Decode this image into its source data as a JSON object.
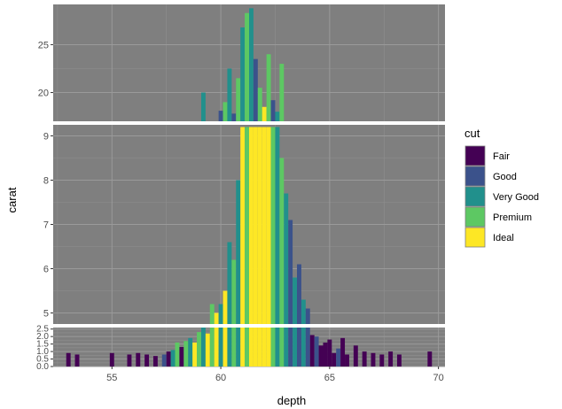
{
  "chart_data": {
    "type": "bar",
    "subtype": "stacked histogram with broken (segmented) y-axis",
    "xlabel": "depth",
    "ylabel": "carat",
    "xlim": [
      52.3,
      70.3
    ],
    "x_ticks": [
      55,
      60,
      65,
      70
    ],
    "x_tick_labels": [
      "55",
      "60",
      "65",
      "70"
    ],
    "panel_background": "#7f7f7f",
    "grid": true,
    "panels": [
      {
        "name": "upper",
        "ylim": [
          17.0,
          29.2
        ],
        "y_ticks": [
          20,
          25
        ],
        "y_tick_labels": [
          "20",
          "25"
        ]
      },
      {
        "name": "middle",
        "ylim": [
          4.75,
          9.25
        ],
        "y_ticks": [
          5,
          6,
          7,
          8,
          9
        ],
        "y_tick_labels": [
          "5",
          "6",
          "7",
          "8",
          "9"
        ]
      },
      {
        "name": "lower",
        "ylim": [
          0,
          2.6
        ],
        "y_ticks": [
          0.0,
          0.5,
          1.0,
          1.5,
          2.0,
          2.5
        ],
        "y_tick_labels": [
          "0.0",
          "0.5",
          "1.0",
          "1.5",
          "2.0",
          "2.5"
        ]
      }
    ],
    "legend": {
      "title": "cut",
      "position": "right",
      "entries": [
        {
          "name": "Fair",
          "color": "#440154"
        },
        {
          "name": "Good",
          "color": "#3b528b"
        },
        {
          "name": "Very Good",
          "color": "#21908c"
        },
        {
          "name": "Premium",
          "color": "#5dc863"
        },
        {
          "name": "Ideal",
          "color": "#fde725"
        }
      ]
    },
    "bin_width": 0.2,
    "bins": [
      {
        "x": 53.0,
        "cut": "Fair",
        "height": 0.9
      },
      {
        "x": 53.4,
        "cut": "Fair",
        "height": 0.8
      },
      {
        "x": 55.0,
        "cut": "Fair",
        "height": 0.9
      },
      {
        "x": 55.8,
        "cut": "Fair",
        "height": 0.8
      },
      {
        "x": 56.2,
        "cut": "Fair",
        "height": 0.9
      },
      {
        "x": 56.6,
        "cut": "Fair",
        "height": 0.8
      },
      {
        "x": 57.0,
        "cut": "Fair",
        "height": 0.7
      },
      {
        "x": 57.4,
        "cut": "Good",
        "height": 0.8
      },
      {
        "x": 57.6,
        "cut": "Fair",
        "height": 1.0
      },
      {
        "x": 57.8,
        "cut": "Very Good",
        "height": 1.1
      },
      {
        "x": 58.0,
        "cut": "Premium",
        "height": 1.6
      },
      {
        "x": 58.2,
        "cut": "Fair",
        "height": 1.3
      },
      {
        "x": 58.4,
        "cut": "Premium",
        "height": 1.7
      },
      {
        "x": 58.6,
        "cut": "Very Good",
        "height": 1.9
      },
      {
        "x": 58.8,
        "cut": "Ideal",
        "height": 1.6
      },
      {
        "x": 59.0,
        "cut": "Premium",
        "height": 2.3
      },
      {
        "x": 59.2,
        "cut": "Very Good",
        "height": 2.6
      },
      {
        "x": 59.4,
        "cut": "Ideal",
        "height": 2.2
      },
      {
        "x": 59.6,
        "cut": "Premium",
        "height": 5.2
      },
      {
        "x": 59.8,
        "cut": "Ideal",
        "height": 5.0
      },
      {
        "x": 60.0,
        "cut": "Very Good",
        "height": 5.2
      },
      {
        "x": 60.2,
        "cut": "Ideal",
        "height": 5.5
      },
      {
        "x": 60.4,
        "cut": "Very Good",
        "height": 6.6
      },
      {
        "x": 60.6,
        "cut": "Premium",
        "height": 6.2
      },
      {
        "x": 60.8,
        "cut": "Very Good",
        "height": 8.0
      },
      {
        "x": 61.0,
        "cut": "Ideal",
        "height": 9.2
      },
      {
        "x": 61.2,
        "cut": "Premium",
        "height": 9.2
      },
      {
        "x": 61.4,
        "cut": "Ideal",
        "height": 9.2
      },
      {
        "x": 61.6,
        "cut": "Ideal",
        "height": 9.2
      },
      {
        "x": 61.8,
        "cut": "Ideal",
        "height": 9.2
      },
      {
        "x": 62.0,
        "cut": "Ideal",
        "height": 9.2
      },
      {
        "x": 62.2,
        "cut": "Ideal",
        "height": 9.2
      },
      {
        "x": 62.4,
        "cut": "Premium",
        "height": 9.2
      },
      {
        "x": 62.6,
        "cut": "Very Good",
        "height": 9.2
      },
      {
        "x": 62.8,
        "cut": "Premium",
        "height": 8.5
      },
      {
        "x": 63.0,
        "cut": "Very Good",
        "height": 7.7
      },
      {
        "x": 63.2,
        "cut": "Good",
        "height": 7.1
      },
      {
        "x": 63.4,
        "cut": "Very Good",
        "height": 5.8
      },
      {
        "x": 63.6,
        "cut": "Good",
        "height": 6.1
      },
      {
        "x": 63.8,
        "cut": "Very Good",
        "height": 5.3
      },
      {
        "x": 64.0,
        "cut": "Good",
        "height": 5.1
      },
      {
        "x": 64.2,
        "cut": "Fair",
        "height": 2.1
      },
      {
        "x": 64.4,
        "cut": "Good",
        "height": 2.0
      },
      {
        "x": 64.6,
        "cut": "Fair",
        "height": 1.4
      },
      {
        "x": 64.8,
        "cut": "Fair",
        "height": 1.6
      },
      {
        "x": 65.0,
        "cut": "Fair",
        "height": 1.8
      },
      {
        "x": 65.2,
        "cut": "Fair",
        "height": 0.9
      },
      {
        "x": 65.4,
        "cut": "Good",
        "height": 1.2
      },
      {
        "x": 65.6,
        "cut": "Fair",
        "height": 1.9
      },
      {
        "x": 65.8,
        "cut": "Fair",
        "height": 0.8
      },
      {
        "x": 66.2,
        "cut": "Fair",
        "height": 1.4
      },
      {
        "x": 66.6,
        "cut": "Fair",
        "height": 1.0
      },
      {
        "x": 67.0,
        "cut": "Fair",
        "height": 0.9
      },
      {
        "x": 67.4,
        "cut": "Fair",
        "height": 0.8
      },
      {
        "x": 67.8,
        "cut": "Fair",
        "height": 1.0
      },
      {
        "x": 68.2,
        "cut": "Fair",
        "height": 0.8
      },
      {
        "x": 69.6,
        "cut": "Fair",
        "height": 1.0
      }
    ],
    "peak_spikes": [
      {
        "x": 59.2,
        "cut": "Very Good",
        "height": 20.0
      },
      {
        "x": 60.0,
        "cut": "Good",
        "height": 18.1
      },
      {
        "x": 60.2,
        "cut": "Premium",
        "height": 19.0
      },
      {
        "x": 60.4,
        "cut": "Very Good",
        "height": 22.5
      },
      {
        "x": 60.6,
        "cut": "Good",
        "height": 17.8
      },
      {
        "x": 60.8,
        "cut": "Premium",
        "height": 21.5
      },
      {
        "x": 61.0,
        "cut": "Very Good",
        "height": 26.8
      },
      {
        "x": 61.2,
        "cut": "Premium",
        "height": 28.3
      },
      {
        "x": 61.4,
        "cut": "Very Good",
        "height": 28.8
      },
      {
        "x": 61.6,
        "cut": "Good",
        "height": 23.5
      },
      {
        "x": 61.8,
        "cut": "Premium",
        "height": 20.5
      },
      {
        "x": 62.0,
        "cut": "Ideal",
        "height": 18.5
      },
      {
        "x": 62.2,
        "cut": "Premium",
        "height": 24.0
      },
      {
        "x": 62.4,
        "cut": "Good",
        "height": 19.2
      },
      {
        "x": 62.6,
        "cut": "Very Good",
        "height": 18.0
      },
      {
        "x": 62.8,
        "cut": "Premium",
        "height": 23.0
      }
    ]
  }
}
